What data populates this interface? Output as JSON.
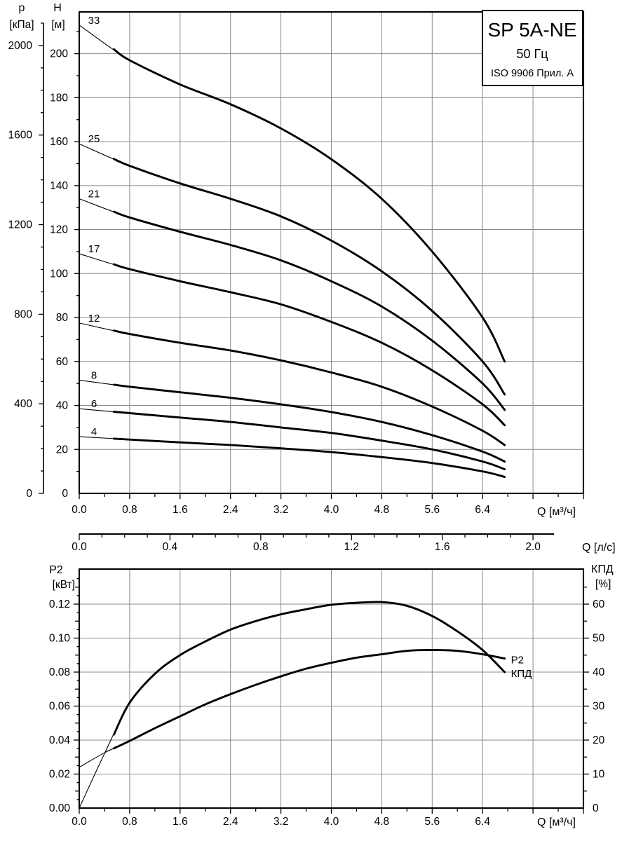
{
  "title_box": {
    "model": "SP 5A-NE",
    "frequency": "50 Гц",
    "standard": "ISO 9906 Прил. А"
  },
  "axis_titles": {
    "pressure": "p",
    "pressure_unit": "[кПа]",
    "head": "H",
    "head_unit": "[м]",
    "flow_top": "Q [м³/ч]",
    "flow_mid": "Q [л/с]",
    "power": "P2",
    "power_unit": "[кВт]",
    "efficiency": "КПД",
    "efficiency_unit": "[%]",
    "flow_bottom": "Q [м³/ч]"
  },
  "chart_data": [
    {
      "id": "head-flow-chart",
      "type": "line",
      "title": "SP 5A-NE pump curves",
      "xlabel": "Q [м³/ч]",
      "ylabel": "H [м]",
      "x_range": [
        0,
        8.0
      ],
      "y_range_head_m": [
        0,
        219
      ],
      "y_range_pressure_kpa": [
        0,
        2100
      ],
      "grid": true,
      "x_major_step": 0.8,
      "x_minor_step": 0.4,
      "head_label_step": 20,
      "head_minor_step": 10,
      "pressure_label_step": 400,
      "pressure_minor_step": 100,
      "x_ticks": [
        [
          0,
          "0.0"
        ],
        [
          0.8,
          "0.8"
        ],
        [
          1.6,
          "1.6"
        ],
        [
          2.4,
          "2.4"
        ],
        [
          3.2,
          "3.2"
        ],
        [
          4.0,
          "4.0"
        ],
        [
          4.8,
          "4.8"
        ],
        [
          5.6,
          "5.6"
        ],
        [
          6.4,
          "6.4"
        ]
      ],
      "head_ticks": [
        [
          0,
          "0"
        ],
        [
          20,
          "20"
        ],
        [
          40,
          "40"
        ],
        [
          60,
          "60"
        ],
        [
          80,
          "80"
        ],
        [
          100,
          "100"
        ],
        [
          120,
          "120"
        ],
        [
          140,
          "140"
        ],
        [
          160,
          "160"
        ],
        [
          180,
          "180"
        ],
        [
          200,
          "200"
        ]
      ],
      "pressure_ticks": [
        [
          0,
          "0"
        ],
        [
          400,
          "400"
        ],
        [
          800,
          "800"
        ],
        [
          1200,
          "1200"
        ],
        [
          1600,
          "1600"
        ],
        [
          2000,
          "2000"
        ]
      ],
      "series": [
        {
          "label": "33",
          "thick_from": 0.55,
          "points": [
            [
              0,
              213
            ],
            [
              0.8,
              197
            ],
            [
              1.6,
              186
            ],
            [
              2.4,
              177
            ],
            [
              3.2,
              166
            ],
            [
              4.0,
              152
            ],
            [
              4.8,
              134
            ],
            [
              5.6,
              110
            ],
            [
              6.4,
              80
            ],
            [
              6.75,
              60
            ]
          ]
        },
        {
          "label": "25",
          "thick_from": 0.55,
          "points": [
            [
              0,
              159
            ],
            [
              0.8,
              149
            ],
            [
              1.6,
              141
            ],
            [
              2.4,
              134
            ],
            [
              3.2,
              126
            ],
            [
              4.0,
              115
            ],
            [
              4.8,
              101
            ],
            [
              5.6,
              83
            ],
            [
              6.4,
              60
            ],
            [
              6.75,
              45
            ]
          ]
        },
        {
          "label": "21",
          "thick_from": 0.55,
          "points": [
            [
              0,
              134
            ],
            [
              0.8,
              125.5
            ],
            [
              1.6,
              119
            ],
            [
              2.4,
              113
            ],
            [
              3.2,
              106
            ],
            [
              4.0,
              96.5
            ],
            [
              4.8,
              85
            ],
            [
              5.6,
              69.5
            ],
            [
              6.4,
              50
            ],
            [
              6.75,
              38
            ]
          ]
        },
        {
          "label": "17",
          "thick_from": 0.55,
          "points": [
            [
              0,
              109
            ],
            [
              0.8,
              102
            ],
            [
              1.6,
              96.5
            ],
            [
              2.4,
              91.5
            ],
            [
              3.2,
              86
            ],
            [
              4.0,
              78
            ],
            [
              4.8,
              68.5
            ],
            [
              5.6,
              56
            ],
            [
              6.4,
              40.5
            ],
            [
              6.75,
              31
            ]
          ]
        },
        {
          "label": "12",
          "thick_from": 0.55,
          "points": [
            [
              0,
              77.5
            ],
            [
              0.8,
              72.5
            ],
            [
              1.6,
              68.5
            ],
            [
              2.4,
              65
            ],
            [
              3.2,
              60.5
            ],
            [
              4.0,
              55
            ],
            [
              4.8,
              48.5
            ],
            [
              5.6,
              39.5
            ],
            [
              6.4,
              28.5
            ],
            [
              6.75,
              22
            ]
          ]
        },
        {
          "label": "8",
          "thick_from": 0.55,
          "points": [
            [
              0,
              51.5
            ],
            [
              0.8,
              48.5
            ],
            [
              1.6,
              46
            ],
            [
              2.4,
              43.5
            ],
            [
              3.2,
              40.5
            ],
            [
              4.0,
              37
            ],
            [
              4.8,
              32.5
            ],
            [
              5.6,
              26.5
            ],
            [
              6.4,
              19
            ],
            [
              6.75,
              14.5
            ]
          ]
        },
        {
          "label": "6",
          "thick_from": 0.55,
          "points": [
            [
              0,
              38.5
            ],
            [
              0.8,
              36.5
            ],
            [
              1.6,
              34.5
            ],
            [
              2.4,
              32.5
            ],
            [
              3.2,
              30
            ],
            [
              4.0,
              27.5
            ],
            [
              4.8,
              24
            ],
            [
              5.6,
              20
            ],
            [
              6.4,
              14.5
            ],
            [
              6.75,
              11
            ]
          ]
        },
        {
          "label": "4",
          "thick_from": 0.55,
          "points": [
            [
              0,
              25.8
            ],
            [
              0.8,
              24.5
            ],
            [
              1.6,
              23.2
            ],
            [
              2.4,
              22
            ],
            [
              3.2,
              20.5
            ],
            [
              4.0,
              18.8
            ],
            [
              4.8,
              16.5
            ],
            [
              5.6,
              13.8
            ],
            [
              6.4,
              10
            ],
            [
              6.75,
              7.5
            ]
          ]
        }
      ]
    },
    {
      "id": "flow-ls-axis",
      "type": "axis",
      "label": "Q [л/с]",
      "range": [
        0,
        2.09
      ],
      "major_step": 0.4,
      "minor_step": 0.1,
      "ticks": [
        [
          0,
          "0.0"
        ],
        [
          0.4,
          "0.4"
        ],
        [
          0.8,
          "0.8"
        ],
        [
          1.2,
          "1.2"
        ],
        [
          1.6,
          "1.6"
        ],
        [
          2.0,
          "2.0"
        ]
      ]
    },
    {
      "id": "power-efficiency-chart",
      "type": "line",
      "xlabel": "Q [м³/ч]",
      "ylabel_left": "P2 [кВт]",
      "ylabel_right": "КПД [%]",
      "x_range": [
        0,
        8.0
      ],
      "y_range_power_kw": [
        0,
        0.1406
      ],
      "y_range_efficiency_pct": [
        0,
        70.3
      ],
      "grid": true,
      "x_ticks": [
        [
          0,
          "0.0"
        ],
        [
          0.8,
          "0.8"
        ],
        [
          1.6,
          "1.6"
        ],
        [
          2.4,
          "2.4"
        ],
        [
          3.2,
          "3.2"
        ],
        [
          4.0,
          "4.0"
        ],
        [
          4.8,
          "4.8"
        ],
        [
          5.6,
          "5.6"
        ],
        [
          6.4,
          "6.4"
        ]
      ],
      "power_ticks": [
        [
          0,
          "0.00"
        ],
        [
          0.02,
          "0.02"
        ],
        [
          0.04,
          "0.04"
        ],
        [
          0.06,
          "0.06"
        ],
        [
          0.08,
          "0.08"
        ],
        [
          0.1,
          "0.10"
        ],
        [
          0.12,
          "0.12"
        ]
      ],
      "efficiency_ticks": [
        [
          0,
          "0"
        ],
        [
          10,
          "10"
        ],
        [
          20,
          "20"
        ],
        [
          30,
          "30"
        ],
        [
          40,
          "40"
        ],
        [
          50,
          "50"
        ],
        [
          60,
          "60"
        ]
      ],
      "series": [
        {
          "label": "P2",
          "axis": "left",
          "thick_from": 0.55,
          "points": [
            [
              0,
              0.024
            ],
            [
              0.4,
              0.0325
            ],
            [
              0.8,
              0.0395
            ],
            [
              1.2,
              0.047
            ],
            [
              1.6,
              0.054
            ],
            [
              2.0,
              0.061
            ],
            [
              2.4,
              0.067
            ],
            [
              2.8,
              0.0725
            ],
            [
              3.2,
              0.0775
            ],
            [
              3.6,
              0.082
            ],
            [
              4.0,
              0.0855
            ],
            [
              4.4,
              0.0885
            ],
            [
              4.8,
              0.0905
            ],
            [
              5.2,
              0.0925
            ],
            [
              5.6,
              0.093
            ],
            [
              6.0,
              0.0925
            ],
            [
              6.4,
              0.0905
            ],
            [
              6.75,
              0.088
            ]
          ]
        },
        {
          "label": "КПД",
          "axis": "right",
          "thick_from": 0.55,
          "points": [
            [
              0,
              0
            ],
            [
              0.4,
              16
            ],
            [
              0.8,
              31
            ],
            [
              1.2,
              39.5
            ],
            [
              1.6,
              45
            ],
            [
              2.0,
              49
            ],
            [
              2.4,
              52.5
            ],
            [
              2.8,
              55
            ],
            [
              3.2,
              57
            ],
            [
              3.6,
              58.5
            ],
            [
              4.0,
              59.8
            ],
            [
              4.4,
              60.4
            ],
            [
              4.8,
              60.6
            ],
            [
              5.2,
              59.5
            ],
            [
              5.6,
              56.5
            ],
            [
              6.0,
              52
            ],
            [
              6.4,
              46.5
            ],
            [
              6.75,
              40
            ]
          ]
        }
      ]
    }
  ]
}
